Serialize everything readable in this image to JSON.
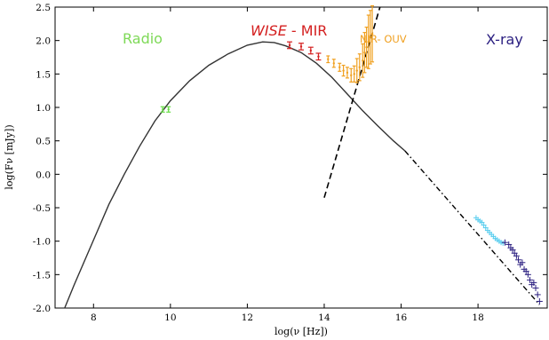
{
  "chart_data": {
    "type": "scatter",
    "xlabel": "log(ν [Hz])",
    "ylabel": "log(Fν [mJy])",
    "xlim": [
      7.0,
      19.8
    ],
    "ylim": [
      -2.0,
      2.5
    ],
    "x_ticks": [
      8,
      10,
      12,
      14,
      16,
      18
    ],
    "y_ticks": [
      -2.0,
      -1.5,
      -1.0,
      -0.5,
      0.0,
      0.5,
      1.0,
      1.5,
      2.0,
      2.5
    ],
    "grid": false,
    "colors": {
      "radio": "#66dd44",
      "wise": "#d42020",
      "nir_ouv": "#f0a020",
      "xray_soft": "#55ccee",
      "xray_hard": "#2a1e80",
      "model": "#333333"
    },
    "annotations": {
      "radio": "Radio",
      "wise_italic": "WISE",
      "wise_rest": " - MIR",
      "nir": "NIR- OUV",
      "xray": "X-ray"
    },
    "model_curve": {
      "x": [
        7.25,
        7.5,
        7.8,
        8.1,
        8.4,
        8.8,
        9.2,
        9.6,
        10.0,
        10.5,
        11.0,
        11.5,
        12.0,
        12.4,
        12.7,
        13.0,
        13.4,
        13.8,
        14.2,
        14.6,
        15.0,
        15.4,
        15.8,
        16.1
      ],
      "y": [
        -2.0,
        -1.65,
        -1.25,
        -0.85,
        -0.45,
        0.0,
        0.42,
        0.8,
        1.1,
        1.4,
        1.63,
        1.8,
        1.93,
        1.98,
        1.97,
        1.92,
        1.82,
        1.66,
        1.45,
        1.2,
        0.95,
        0.72,
        0.5,
        0.35
      ]
    },
    "extrapolation": {
      "x": [
        16.1,
        19.6
      ],
      "y": [
        0.35,
        -1.95
      ]
    },
    "dashed_line": {
      "x": [
        14.0,
        15.45
      ],
      "y": [
        -0.35,
        2.5
      ]
    },
    "radio": {
      "x": [
        9.8,
        9.95
      ],
      "y": [
        0.97,
        0.97
      ],
      "err": [
        0.04,
        0.04
      ]
    },
    "wise": {
      "x": [
        13.1,
        13.4,
        13.65,
        13.85
      ],
      "y": [
        1.93,
        1.91,
        1.85,
        1.76
      ],
      "err": [
        0.05,
        0.05,
        0.05,
        0.05
      ]
    },
    "nir_ouv": {
      "x": [
        14.1,
        14.25,
        14.4,
        14.5,
        14.6,
        14.7,
        14.78,
        14.85,
        14.92,
        15.0,
        15.05,
        15.1,
        15.15,
        15.2,
        15.25
      ],
      "y": [
        1.72,
        1.66,
        1.6,
        1.55,
        1.52,
        1.48,
        1.5,
        1.55,
        1.6,
        1.7,
        1.82,
        1.9,
        1.98,
        2.05,
        2.1
      ],
      "err": [
        0.05,
        0.06,
        0.06,
        0.08,
        0.08,
        0.1,
        0.12,
        0.18,
        0.2,
        0.25,
        0.3,
        0.3,
        0.4,
        0.4,
        0.42
      ]
    },
    "xray_soft": {
      "x": [
        17.95,
        18.0,
        18.05,
        18.1,
        18.15,
        18.2,
        18.25,
        18.3,
        18.35,
        18.4,
        18.45,
        18.5,
        18.55,
        18.6,
        18.65
      ],
      "y": [
        -0.65,
        -0.68,
        -0.7,
        -0.72,
        -0.76,
        -0.8,
        -0.84,
        -0.87,
        -0.9,
        -0.93,
        -0.96,
        -0.98,
        -1.0,
        -1.02,
        -1.03
      ]
    },
    "xray_hard": {
      "x": [
        18.7,
        18.8,
        18.85,
        18.9,
        18.95,
        19.0,
        19.05,
        19.1,
        19.15,
        19.2,
        19.25,
        19.3,
        19.35,
        19.4,
        19.45,
        19.5,
        19.55,
        19.6
      ],
      "y": [
        -1.02,
        -1.05,
        -1.1,
        -1.13,
        -1.18,
        -1.22,
        -1.28,
        -1.35,
        -1.32,
        -1.42,
        -1.45,
        -1.5,
        -1.58,
        -1.65,
        -1.62,
        -1.7,
        -1.8,
        -1.9
      ]
    }
  }
}
